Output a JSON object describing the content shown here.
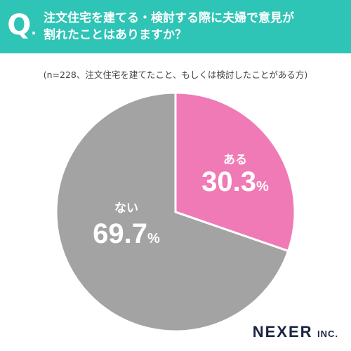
{
  "header": {
    "q_label": "Q",
    "q_dot": ".",
    "question_line1": "注文住宅を建てる・検討する際に夫婦で意見が",
    "question_line2": "割れたことはありますか？",
    "background": "#2ec4b6"
  },
  "subtitle": "(n=228、注文住宅を建てたこと、もしくは検討したことがある方)",
  "chart_data": {
    "type": "pie",
    "slices": [
      {
        "label": "ある",
        "value": 30.3,
        "value_text": "30.3",
        "unit": "%",
        "color": "#f07ab5"
      },
      {
        "label": "ない",
        "value": 69.7,
        "value_text": "69.7",
        "unit": "%",
        "color": "#a3a3a3"
      }
    ],
    "start": "12 o'clock, clockwise"
  },
  "logo": {
    "main": "NEXER",
    "suffix": "INC."
  }
}
